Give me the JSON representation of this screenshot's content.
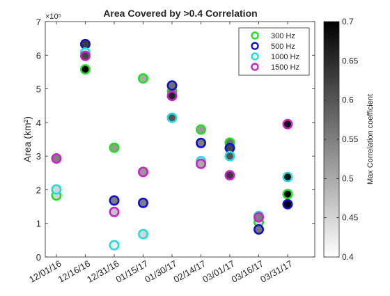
{
  "chart_data": {
    "type": "scatter",
    "title": "Area Covered by >0.4 Correlation",
    "ylabel": "Area (km²)",
    "y_exponent_label": "×10⁵",
    "ylim": [
      0,
      7
    ],
    "yticks": [
      0,
      1,
      2,
      3,
      4,
      5,
      6,
      7
    ],
    "categories": [
      "12/01/16",
      "12/16/16",
      "12/31/16",
      "01/15/17",
      "01/30/17",
      "02/14/17",
      "03/01/17",
      "03/16/17",
      "03/31/17"
    ],
    "grid": false,
    "legend_position": "top-right",
    "colorbar": {
      "label": "Max Correlation coefficient",
      "range": [
        0.4,
        0.7
      ],
      "ticks": [
        "0.4",
        "0.45",
        "0.5",
        "0.55",
        "0.6",
        "0.65",
        "0.7"
      ],
      "colormap": "gray (white to black)"
    },
    "series": [
      {
        "name": "300 Hz",
        "edge_color": "#22dd22",
        "points": [
          {
            "x": 0,
            "y": 1.83,
            "c": 0.45
          },
          {
            "x": 1,
            "y": 5.58,
            "c": 0.7
          },
          {
            "x": 2,
            "y": 3.25,
            "c": 0.52
          },
          {
            "x": 3,
            "y": 5.31,
            "c": 0.5
          },
          {
            "x": 4,
            "y": 4.93,
            "c": 0.55
          },
          {
            "x": 5,
            "y": 3.79,
            "c": 0.52
          },
          {
            "x": 6,
            "y": 3.4,
            "c": 0.57
          },
          {
            "x": 7,
            "y": 1.04,
            "c": 0.45
          },
          {
            "x": 8,
            "y": 1.87,
            "c": 0.7
          }
        ]
      },
      {
        "name": "500 Hz",
        "edge_color": "#1111cc",
        "points": [
          {
            "x": 1,
            "y": 6.33,
            "c": 0.63
          },
          {
            "x": 2,
            "y": 1.68,
            "c": 0.55
          },
          {
            "x": 3,
            "y": 1.61,
            "c": 0.55
          },
          {
            "x": 4,
            "y": 5.1,
            "c": 0.57
          },
          {
            "x": 5,
            "y": 3.39,
            "c": 0.55
          },
          {
            "x": 6,
            "y": 3.24,
            "c": 0.62
          },
          {
            "x": 7,
            "y": 0.82,
            "c": 0.56
          },
          {
            "x": 8,
            "y": 1.57,
            "c": 0.7
          }
        ]
      },
      {
        "name": "1000 Hz",
        "edge_color": "#22dddd",
        "points": [
          {
            "x": 0,
            "y": 2.01,
            "c": 0.45
          },
          {
            "x": 1,
            "y": 6.08,
            "c": 0.45
          },
          {
            "x": 2,
            "y": 0.35,
            "c": 0.42
          },
          {
            "x": 3,
            "y": 0.68,
            "c": 0.45
          },
          {
            "x": 4,
            "y": 4.14,
            "c": 0.6
          },
          {
            "x": 5,
            "y": 2.85,
            "c": 0.45
          },
          {
            "x": 6,
            "y": 3.0,
            "c": 0.6
          },
          {
            "x": 7,
            "y": 1.22,
            "c": 0.47
          },
          {
            "x": 8,
            "y": 2.38,
            "c": 0.68
          }
        ]
      },
      {
        "name": "1500 Hz",
        "edge_color": "#cc22cc",
        "points": [
          {
            "x": 0,
            "y": 2.93,
            "c": 0.55
          },
          {
            "x": 1,
            "y": 5.98,
            "c": 0.62
          },
          {
            "x": 2,
            "y": 1.34,
            "c": 0.47
          },
          {
            "x": 3,
            "y": 2.53,
            "c": 0.52
          },
          {
            "x": 4,
            "y": 4.79,
            "c": 0.66
          },
          {
            "x": 5,
            "y": 2.77,
            "c": 0.5
          },
          {
            "x": 6,
            "y": 2.43,
            "c": 0.63
          },
          {
            "x": 7,
            "y": 1.18,
            "c": 0.55
          },
          {
            "x": 8,
            "y": 3.95,
            "c": 0.68
          }
        ]
      }
    ]
  }
}
